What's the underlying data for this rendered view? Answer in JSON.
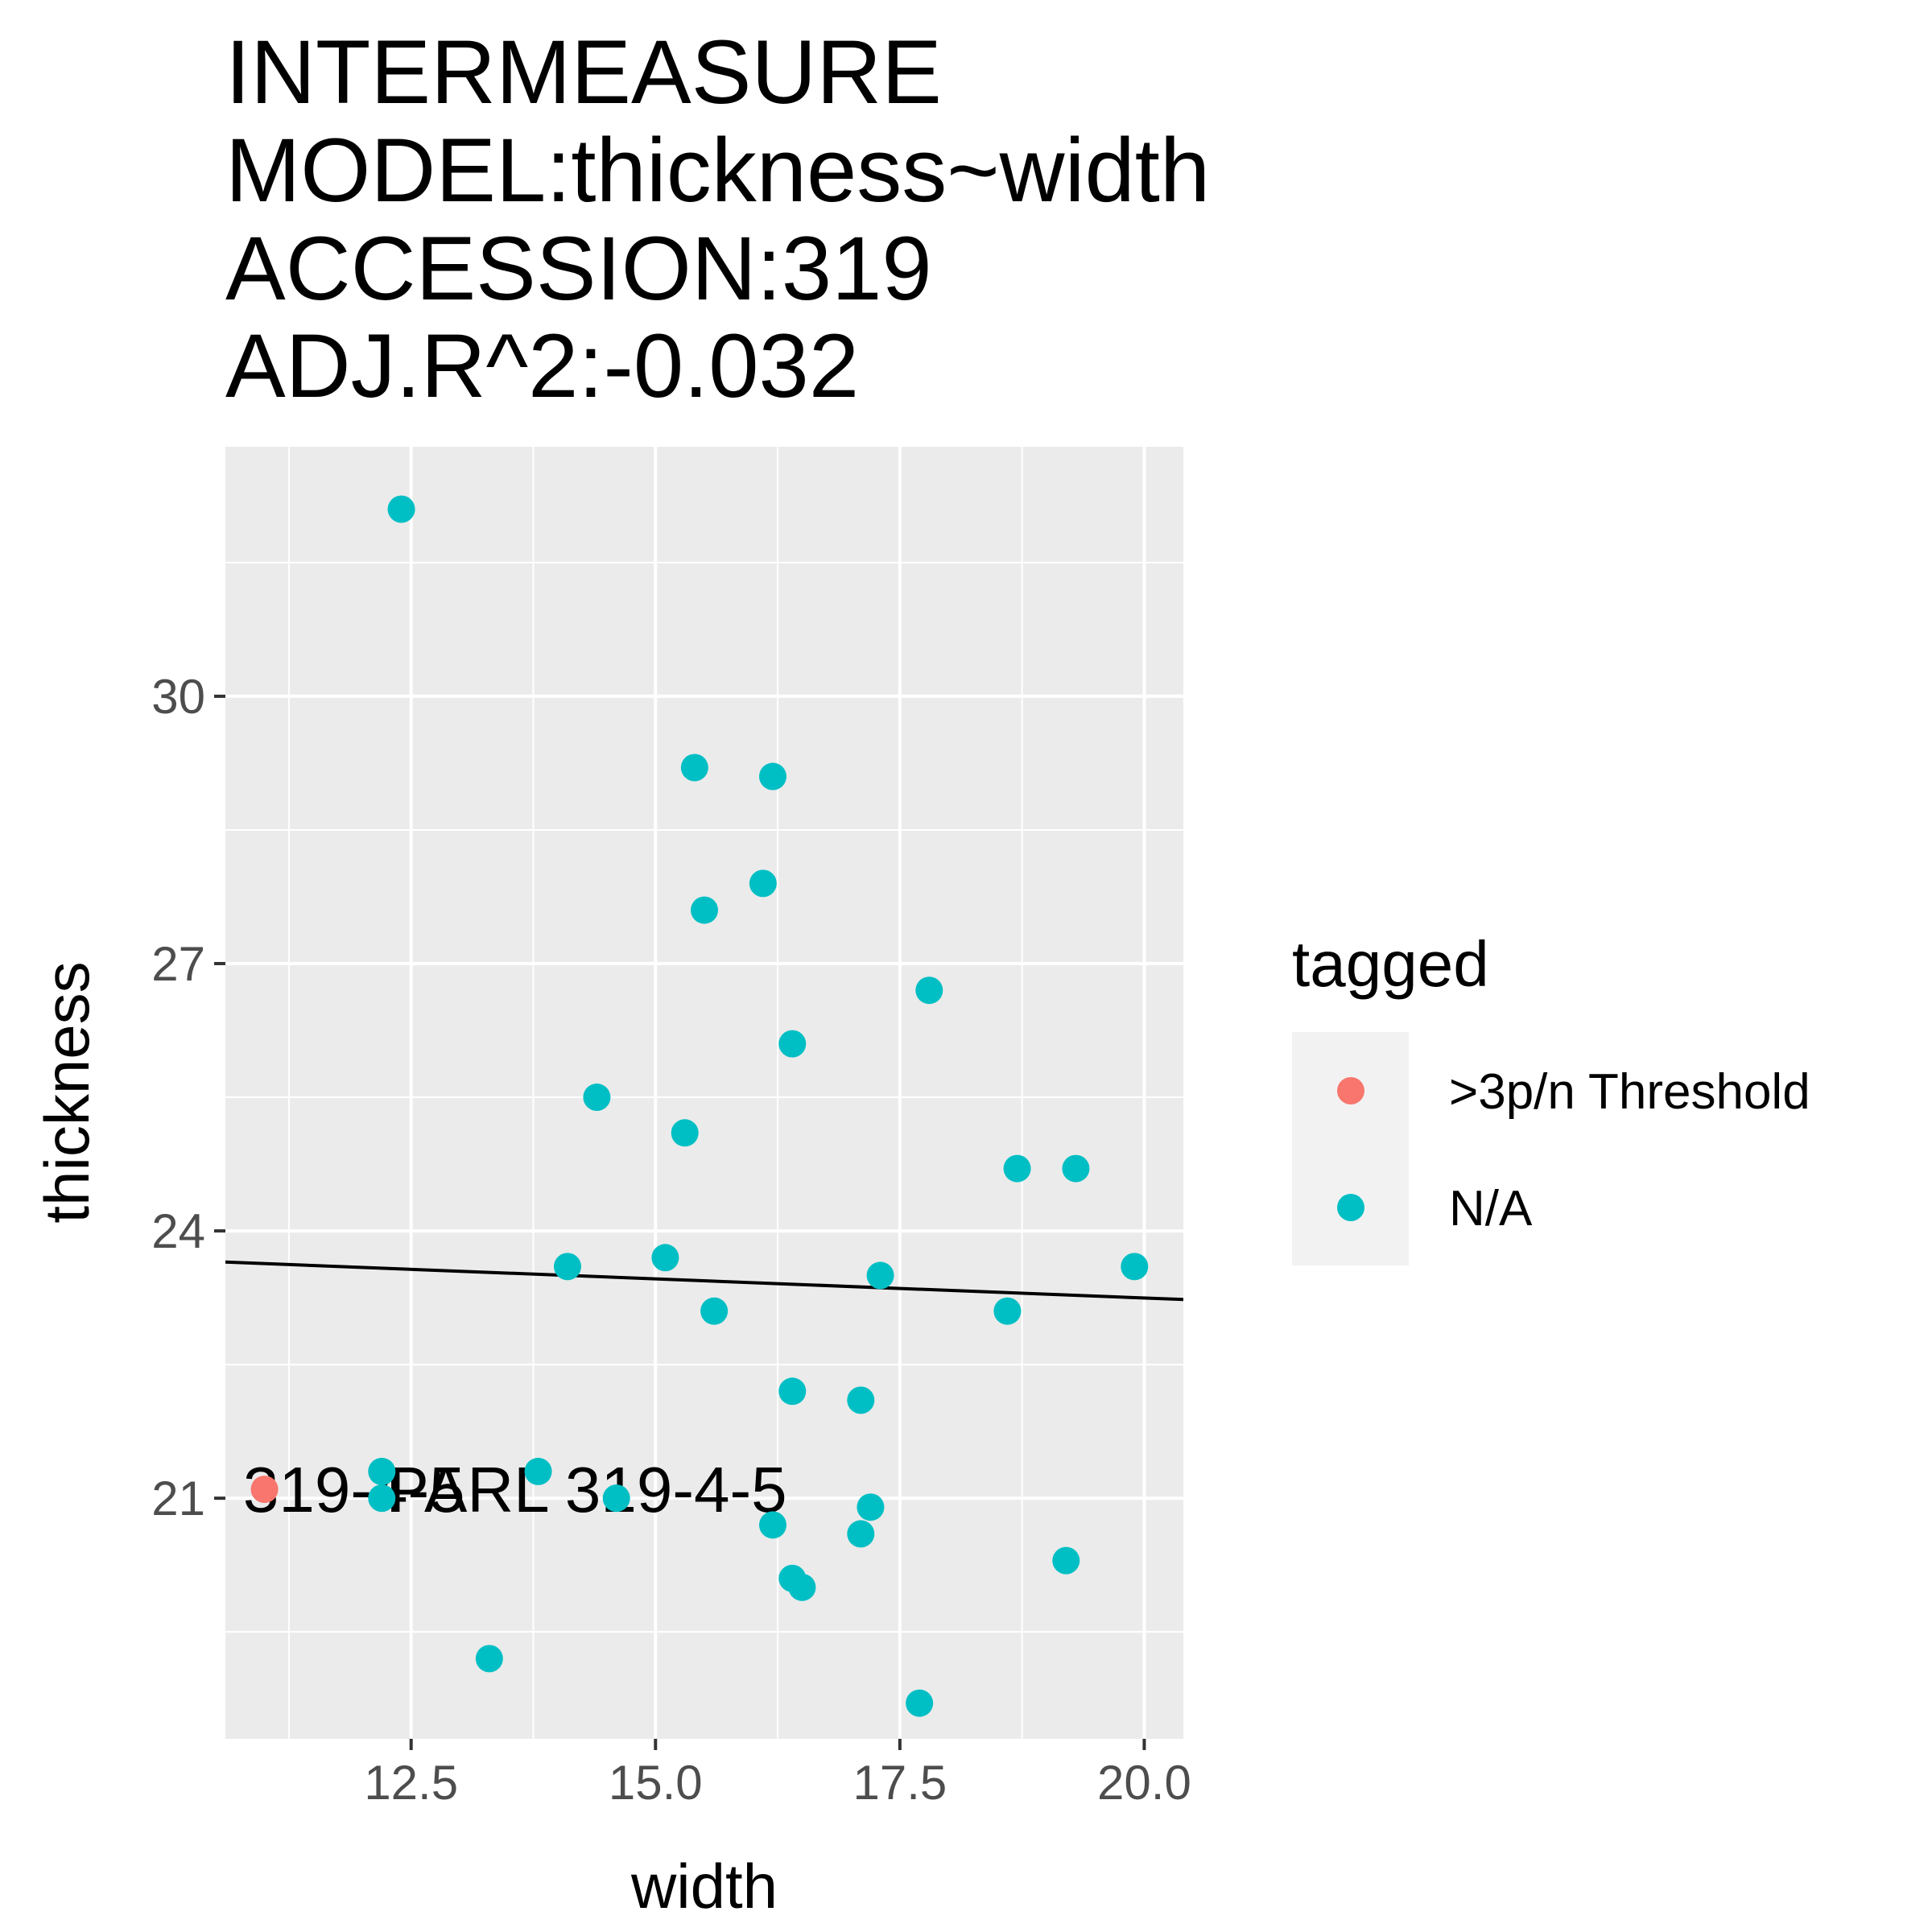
{
  "chart_data": {
    "type": "scatter",
    "title_lines": [
      "INTERMEASURE",
      "MODEL:thickness~width",
      "ACCESSION:319",
      "ADJ.R^2:-0.032"
    ],
    "xlabel": "width",
    "ylabel": "thickness",
    "xlim": [
      10.6,
      20.4
    ],
    "ylim": [
      18.3,
      32.8
    ],
    "x_ticks": [
      12.5,
      15.0,
      17.5,
      20.0
    ],
    "x_tick_labels": [
      "12.5",
      "15.0",
      "17.5",
      "20.0"
    ],
    "y_ticks": [
      21,
      24,
      27,
      30
    ],
    "y_tick_labels": [
      "21",
      "24",
      "27",
      "30"
    ],
    "x_minor_ticks": [
      11.25,
      13.75,
      16.25,
      18.75
    ],
    "y_minor_ticks": [
      19.5,
      22.5,
      25.5,
      28.5,
      31.5
    ],
    "grid": true,
    "legend": {
      "title": "tagged",
      "position": "right",
      "entries": [
        {
          "label": ">3p/n Threshold",
          "color": "#F8766D"
        },
        {
          "label": "N/A",
          "color": "#00BFC4"
        }
      ]
    },
    "series": [
      {
        "name": ">3p/n Threshold",
        "color": "#F8766D",
        "points": [
          [
            11.0,
            21.1
          ]
        ]
      },
      {
        "name": "N/A",
        "color": "#00BFC4",
        "points": [
          [
            12.4,
            32.1
          ],
          [
            15.4,
            29.2
          ],
          [
            16.2,
            29.1
          ],
          [
            16.1,
            27.9
          ],
          [
            15.5,
            27.6
          ],
          [
            17.8,
            26.7
          ],
          [
            16.4,
            26.1
          ],
          [
            14.4,
            25.5
          ],
          [
            15.3,
            25.1
          ],
          [
            18.7,
            24.7
          ],
          [
            19.3,
            24.7
          ],
          [
            14.1,
            23.6
          ],
          [
            15.1,
            23.7
          ],
          [
            17.3,
            23.5
          ],
          [
            19.9,
            23.6
          ],
          [
            15.6,
            23.1
          ],
          [
            18.6,
            23.1
          ],
          [
            16.4,
            22.2
          ],
          [
            17.1,
            22.1
          ],
          [
            12.2,
            21.3
          ],
          [
            13.8,
            21.3
          ],
          [
            12.2,
            21.0
          ],
          [
            14.6,
            21.0
          ],
          [
            17.2,
            20.9
          ],
          [
            16.2,
            20.7
          ],
          [
            17.1,
            20.6
          ],
          [
            16.4,
            20.1
          ],
          [
            16.5,
            20.0
          ],
          [
            19.2,
            20.3
          ],
          [
            13.3,
            19.2
          ],
          [
            17.7,
            18.7
          ]
        ]
      }
    ],
    "fit_line": {
      "x": [
        10.6,
        20.4
      ],
      "y": [
        23.65,
        23.23
      ],
      "color": "#000000"
    },
    "annotations": [
      {
        "text": "PARL 319-4-5",
        "x": 11.0,
        "y": 21.1
      }
    ]
  }
}
